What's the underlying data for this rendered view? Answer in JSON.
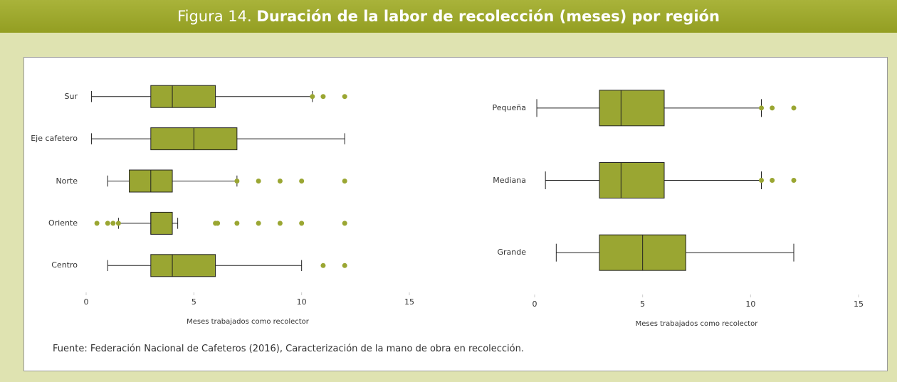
{
  "header": {
    "figure": "Figura 14.",
    "title": "Duración de la labor de recolección (meses) por región"
  },
  "chart_data": [
    {
      "type": "boxplot",
      "orientation": "horizontal",
      "color": "#9aa632",
      "categories": [
        "Sur",
        "Eje cafetero",
        "Norte",
        "Oriente",
        "Centro"
      ],
      "boxes": [
        {
          "low": 0.25,
          "q1": 3,
          "median": 4,
          "q3": 6,
          "high": 10.5,
          "outliers": [
            10.5,
            11,
            12
          ]
        },
        {
          "low": 0.25,
          "q1": 3,
          "median": 5,
          "q3": 7,
          "high": 12,
          "outliers": []
        },
        {
          "low": 1,
          "q1": 2,
          "median": 3,
          "q3": 4,
          "high": 7,
          "outliers": [
            7,
            8,
            9,
            10,
            12
          ]
        },
        {
          "low": 1.5,
          "q1": 3,
          "median": 3,
          "q3": 4,
          "high": 4.25,
          "outliers": [
            0.5,
            1,
            1.25,
            1.5,
            6,
            6.1,
            7,
            8,
            9,
            10,
            12
          ]
        },
        {
          "low": 1,
          "q1": 3,
          "median": 4,
          "q3": 6,
          "high": 10,
          "outliers": [
            11,
            12
          ]
        }
      ],
      "xlim": [
        0,
        15
      ],
      "xticks": [
        0,
        5,
        10,
        15
      ],
      "x_label": "Meses trabajados como recolector"
    },
    {
      "type": "boxplot",
      "orientation": "horizontal",
      "color": "#9aa632",
      "categories": [
        "Pequeña",
        "Mediana",
        "Grande"
      ],
      "boxes": [
        {
          "low": 0.1,
          "q1": 3,
          "median": 4,
          "q3": 6,
          "high": 10.5,
          "outliers": [
            10.5,
            11,
            12
          ]
        },
        {
          "low": 0.5,
          "q1": 3,
          "median": 4,
          "q3": 6,
          "high": 10.5,
          "outliers": [
            10.5,
            11,
            12
          ]
        },
        {
          "low": 1,
          "q1": 3,
          "median": 5,
          "q3": 7,
          "high": 12,
          "outliers": []
        }
      ],
      "xlim": [
        0,
        15
      ],
      "xticks": [
        0,
        5,
        10,
        15
      ],
      "x_label": "Meses trabajados como recolector"
    }
  ],
  "source": "Fuente: Federación Nacional de Cafeteros (2016), Caracterización de la mano de obra en recolección."
}
